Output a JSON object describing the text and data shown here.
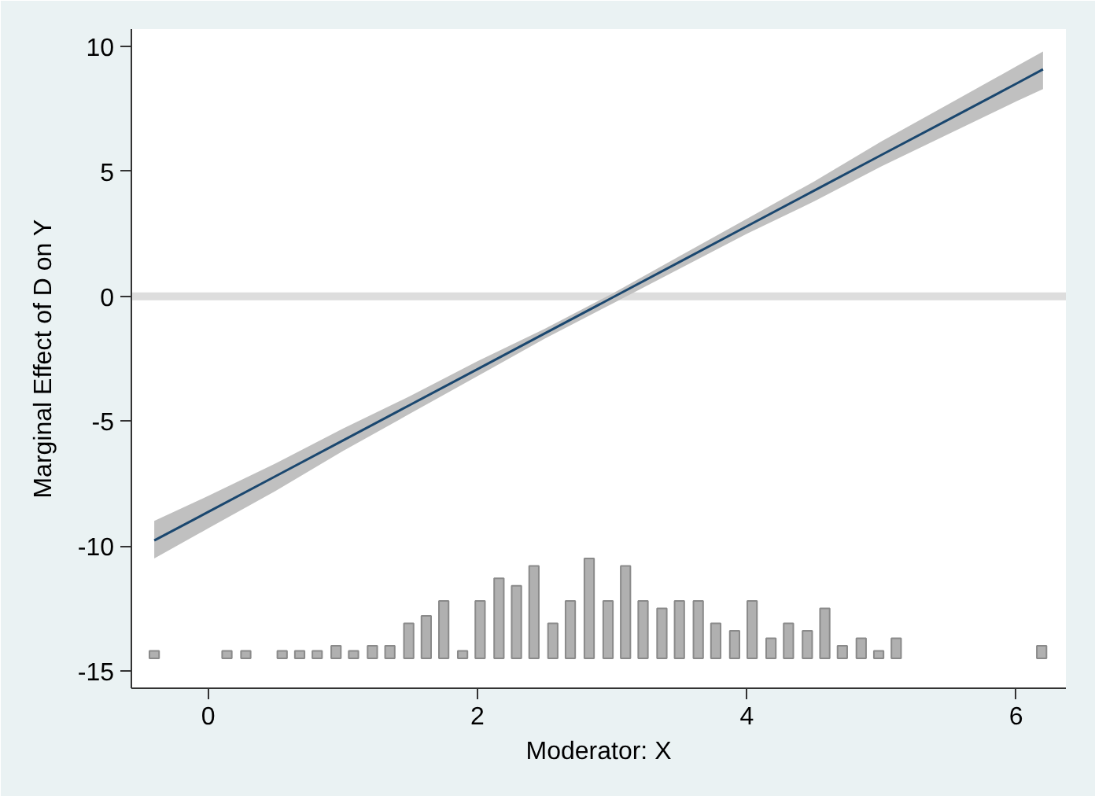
{
  "chart_data": {
    "type": "line",
    "xlabel": "Moderator: X",
    "ylabel": "Marginal Effect of D on Y",
    "xlim": [
      -0.57,
      6.37
    ],
    "ylim": [
      -15.7,
      10.7
    ],
    "xticks": [
      0,
      2,
      4,
      6
    ],
    "yticks": [
      -15,
      -10,
      -5,
      0,
      5,
      10
    ],
    "grid": false,
    "ref_lines": [
      {
        "axis": "y",
        "value": 0,
        "color": "#dddddd"
      }
    ],
    "series": [
      {
        "color": "#1a476f",
        "x": [
          -0.4,
          0,
          0.5,
          1,
          1.5,
          2,
          2.5,
          3,
          3.5,
          4,
          4.5,
          5,
          5.5,
          6,
          6.2
        ],
        "values": [
          -9.78,
          -8.64,
          -7.21,
          -5.78,
          -4.35,
          -2.92,
          -1.49,
          -0.06,
          1.37,
          2.8,
          4.23,
          5.66,
          7.08,
          8.51,
          9.09
        ],
        "lower": [
          -10.5,
          -9.3,
          -7.8,
          -6.2,
          -4.7,
          -3.2,
          -1.7,
          -0.3,
          1.1,
          2.5,
          3.8,
          5.2,
          6.5,
          7.8,
          8.3
        ],
        "upper": [
          -9.0,
          -8.0,
          -6.7,
          -5.3,
          -4.0,
          -2.6,
          -1.3,
          0.1,
          1.6,
          3.1,
          4.6,
          6.2,
          7.7,
          9.2,
          9.8
        ]
      },
      {
        "type": "bar",
        "color": "#b0b0b0",
        "x": [
          -0.4,
          0.14,
          0.28,
          0.55,
          0.68,
          0.81,
          0.95,
          1.08,
          1.22,
          1.35,
          1.49,
          1.62,
          1.75,
          1.89,
          2.02,
          2.16,
          2.29,
          2.42,
          2.56,
          2.69,
          2.83,
          2.97,
          3.1,
          3.23,
          3.37,
          3.5,
          3.64,
          3.77,
          3.91,
          4.04,
          4.18,
          4.31,
          4.45,
          4.58,
          4.71,
          4.85,
          4.98,
          5.11,
          6.19
        ],
        "base": [
          -14.5,
          -14.5,
          -14.5,
          -14.5,
          -14.5,
          -14.5,
          -14.5,
          -14.5,
          -14.5,
          -14.5,
          -14.5,
          -14.5,
          -14.5,
          -14.5,
          -14.5,
          -14.5,
          -14.5,
          -14.5,
          -14.5,
          -14.5,
          -14.5,
          -14.5,
          -14.5,
          -14.5,
          -14.5,
          -14.5,
          -14.5,
          -14.5,
          -14.5,
          -14.5,
          -14.5,
          -14.5,
          -14.5,
          -14.5,
          -14.5,
          -14.5,
          -14.5,
          -14.5,
          -14.5
        ],
        "values": [
          0.3,
          0.3,
          0.3,
          0.3,
          0.3,
          0.3,
          0.5,
          0.3,
          0.5,
          0.5,
          1.4,
          1.7,
          2.3,
          0.3,
          2.3,
          3.2,
          2.9,
          3.7,
          1.4,
          2.3,
          4.0,
          2.3,
          3.7,
          2.3,
          2.0,
          2.3,
          2.3,
          1.4,
          1.1,
          2.3,
          0.8,
          1.4,
          1.1,
          2.0,
          0.5,
          0.8,
          0.3,
          0.8,
          0.5
        ]
      }
    ]
  }
}
